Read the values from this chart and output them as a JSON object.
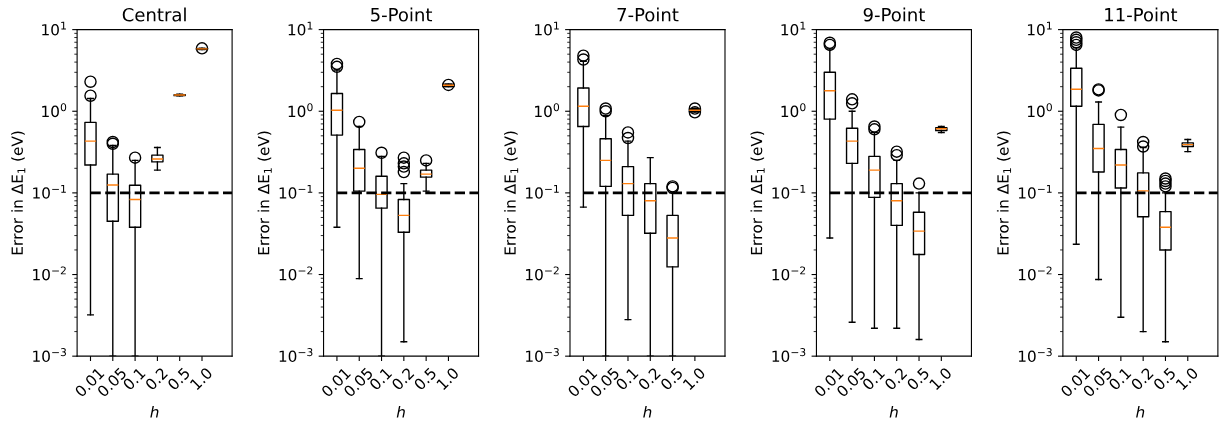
{
  "chart_data": [
    {
      "type": "box",
      "title": "Central",
      "xlabel": "h",
      "ylabel": "Error in ΔE$_{1}$ (eV)",
      "log": "y",
      "grid": false,
      "categories": [
        "0.01",
        "0.05",
        "0.1",
        "0.2",
        "0.5",
        "1.0"
      ],
      "ylim": [
        0.001,
        10
      ],
      "yticks": [
        {
          "value": 0.001,
          "label": "10$^{−3}$"
        },
        {
          "value": 0.01,
          "label": "10$^{−2}$"
        },
        {
          "value": 0.1,
          "label": "10$^{−1}$"
        },
        {
          "value": 1,
          "label": "10$^{0}$"
        },
        {
          "value": 10,
          "label": "10$^{1}$"
        }
      ],
      "ref_lines": [
        {
          "axis": "y",
          "value": 0.1,
          "color": "#000000",
          "line_style": "dashed"
        }
      ],
      "boxes": [
        {
          "low": 0.0032,
          "q1": 0.22,
          "median": 0.43,
          "q3": 0.73,
          "high": 1.43,
          "outliers": [
            1.55,
            2.3
          ]
        },
        {
          "low": 0.001,
          "q1": 0.045,
          "median": 0.125,
          "q3": 0.17,
          "high": 0.38,
          "outliers": [
            0.4,
            0.42
          ]
        },
        {
          "low": 0.001,
          "q1": 0.038,
          "median": 0.083,
          "q3": 0.124,
          "high": 0.25,
          "outliers": [
            0.27
          ]
        },
        {
          "low": 0.19,
          "q1": 0.24,
          "median": 0.26,
          "q3": 0.29,
          "high": 0.36
        },
        {
          "low": 1.55,
          "q1": 1.56,
          "median": 1.58,
          "q3": 1.6,
          "high": 1.62
        },
        {
          "low": 5.7,
          "q1": 5.75,
          "median": 5.8,
          "q3": 5.85,
          "high": 5.9,
          "outliers": [
            5.9
          ]
        }
      ]
    },
    {
      "type": "box",
      "title": "5-Point",
      "xlabel": "h",
      "ylabel": "Error in ΔE$_{1}$ (eV)",
      "log": "y",
      "grid": false,
      "categories": [
        "0.01",
        "0.05",
        "0.1",
        "0.2",
        "0.5",
        "1.0"
      ],
      "ylim": [
        0.001,
        10
      ],
      "yticks": [
        {
          "value": 0.001,
          "label": "10$^{−3}$"
        },
        {
          "value": 0.01,
          "label": "10$^{−2}$"
        },
        {
          "value": 0.1,
          "label": "10$^{−1}$"
        },
        {
          "value": 1,
          "label": "10$^{0}$"
        },
        {
          "value": 10,
          "label": "10$^{1}$"
        }
      ],
      "ref_lines": [
        {
          "axis": "y",
          "value": 0.1,
          "color": "#000000",
          "line_style": "dashed"
        }
      ],
      "boxes": [
        {
          "low": 0.038,
          "q1": 0.51,
          "median": 1.03,
          "q3": 1.65,
          "high": 3.2,
          "outliers": [
            3.5,
            3.8
          ]
        },
        {
          "low": 0.0089,
          "q1": 0.105,
          "median": 0.2,
          "q3": 0.34,
          "high": 0.65,
          "outliers": [
            0.74
          ]
        },
        {
          "low": 0.001,
          "q1": 0.065,
          "median": 0.096,
          "q3": 0.16,
          "high": 0.28,
          "outliers": [
            0.31
          ]
        },
        {
          "low": 0.0015,
          "q1": 0.033,
          "median": 0.053,
          "q3": 0.083,
          "high": 0.13,
          "outliers": [
            0.18,
            0.21,
            0.23,
            0.27
          ]
        },
        {
          "low": 0.105,
          "q1": 0.156,
          "median": 0.17,
          "q3": 0.19,
          "high": 0.23,
          "outliers": [
            0.25
          ]
        },
        {
          "low": 2.0,
          "q1": 2.0,
          "median": 2.08,
          "q3": 2.15,
          "high": 2.15,
          "outliers": [
            2.1
          ]
        }
      ]
    },
    {
      "type": "box",
      "title": "7-Point",
      "xlabel": "h",
      "ylabel": "Error in ΔE$_{1}$ (eV)",
      "log": "y",
      "grid": false,
      "categories": [
        "0.01",
        "0.05",
        "0.1",
        "0.2",
        "0.5",
        "1.0"
      ],
      "ylim": [
        0.001,
        10
      ],
      "yticks": [
        {
          "value": 0.001,
          "label": "10$^{−3}$"
        },
        {
          "value": 0.01,
          "label": "10$^{−2}$"
        },
        {
          "value": 0.1,
          "label": "10$^{−1}$"
        },
        {
          "value": 1,
          "label": "10$^{0}$"
        },
        {
          "value": 10,
          "label": "10$^{1}$"
        }
      ],
      "ref_lines": [
        {
          "axis": "y",
          "value": 0.1,
          "color": "#000000",
          "line_style": "dashed"
        }
      ],
      "boxes": [
        {
          "low": 0.067,
          "q1": 0.65,
          "median": 1.15,
          "q3": 1.93,
          "high": 4.1,
          "outliers": [
            4.3,
            4.8
          ]
        },
        {
          "low": 0.001,
          "q1": 0.12,
          "median": 0.25,
          "q3": 0.46,
          "high": 0.89,
          "outliers": [
            1.0,
            1.08
          ]
        },
        {
          "low": 0.0028,
          "q1": 0.053,
          "median": 0.13,
          "q3": 0.21,
          "high": 0.43,
          "outliers": [
            0.47,
            0.55
          ]
        },
        {
          "low": 0.001,
          "q1": 0.032,
          "median": 0.08,
          "q3": 0.13,
          "high": 0.27
        },
        {
          "low": 0.001,
          "q1": 0.0124,
          "median": 0.028,
          "q3": 0.053,
          "high": 0.1,
          "outliers": [
            0.115,
            0.12
          ]
        },
        {
          "low": 0.98,
          "q1": 1.0,
          "median": 1.03,
          "q3": 1.06,
          "high": 1.08,
          "outliers": [
            0.97,
            1.08
          ]
        }
      ]
    },
    {
      "type": "box",
      "title": "9-Point",
      "xlabel": "h",
      "ylabel": "Error in ΔE$_{1}$ (eV)",
      "log": "y",
      "grid": false,
      "categories": [
        "0.01",
        "0.05",
        "0.1",
        "0.2",
        "0.5",
        "1.0"
      ],
      "ylim": [
        0.001,
        10
      ],
      "yticks": [
        {
          "value": 0.001,
          "label": "10$^{−3}$"
        },
        {
          "value": 0.01,
          "label": "10$^{−2}$"
        },
        {
          "value": 0.1,
          "label": "10$^{−1}$"
        },
        {
          "value": 1,
          "label": "10$^{0}$"
        },
        {
          "value": 10,
          "label": "10$^{1}$"
        }
      ],
      "ref_lines": [
        {
          "axis": "y",
          "value": 0.1,
          "color": "#000000",
          "line_style": "dashed"
        }
      ],
      "boxes": [
        {
          "low": 0.028,
          "q1": 0.8,
          "median": 1.78,
          "q3": 3.0,
          "high": 5.8,
          "outliers": [
            6.5,
            6.9
          ]
        },
        {
          "low": 0.0026,
          "q1": 0.23,
          "median": 0.43,
          "q3": 0.62,
          "high": 1.0,
          "outliers": [
            1.25,
            1.4
          ]
        },
        {
          "low": 0.0022,
          "q1": 0.088,
          "median": 0.19,
          "q3": 0.28,
          "high": 0.55,
          "outliers": [
            0.6,
            0.65
          ]
        },
        {
          "low": 0.0022,
          "q1": 0.04,
          "median": 0.08,
          "q3": 0.13,
          "high": 0.25,
          "outliers": [
            0.29,
            0.32
          ]
        },
        {
          "low": 0.0016,
          "q1": 0.0176,
          "median": 0.034,
          "q3": 0.058,
          "high": 0.1,
          "outliers": [
            0.13
          ]
        },
        {
          "low": 0.55,
          "q1": 0.58,
          "median": 0.61,
          "q3": 0.63,
          "high": 0.65
        }
      ]
    },
    {
      "type": "box",
      "title": "11-Point",
      "xlabel": "h",
      "ylabel": "Error in ΔE$_{1}$ (eV)",
      "log": "y",
      "grid": false,
      "categories": [
        "0.01",
        "0.05",
        "0.1",
        "0.2",
        "0.5",
        "1.0"
      ],
      "ylim": [
        0.001,
        10
      ],
      "yticks": [
        {
          "value": 0.001,
          "label": "10$^{−3}$"
        },
        {
          "value": 0.01,
          "label": "10$^{−2}$"
        },
        {
          "value": 0.1,
          "label": "10$^{−1}$"
        },
        {
          "value": 1,
          "label": "10$^{0}$"
        },
        {
          "value": 10,
          "label": "10$^{1}$"
        }
      ],
      "ref_lines": [
        {
          "axis": "y",
          "value": 0.1,
          "color": "#000000",
          "line_style": "dashed"
        }
      ],
      "boxes": [
        {
          "low": 0.0235,
          "q1": 1.15,
          "median": 1.86,
          "q3": 3.36,
          "high": 6.0,
          "outliers": [
            6.5,
            7.0,
            7.5,
            8.0
          ]
        },
        {
          "low": 0.0087,
          "q1": 0.18,
          "median": 0.35,
          "q3": 0.69,
          "high": 1.3,
          "outliers": [
            1.8,
            1.85
          ]
        },
        {
          "low": 0.003,
          "q1": 0.115,
          "median": 0.22,
          "q3": 0.34,
          "high": 0.64,
          "outliers": [
            0.9
          ]
        },
        {
          "low": 0.002,
          "q1": 0.051,
          "median": 0.106,
          "q3": 0.176,
          "high": 0.36,
          "outliers": [
            0.37,
            0.42
          ]
        },
        {
          "low": 0.0015,
          "q1": 0.02,
          "median": 0.038,
          "q3": 0.059,
          "high": 0.1,
          "outliers": [
            0.12,
            0.13,
            0.14,
            0.15
          ]
        },
        {
          "low": 0.32,
          "q1": 0.37,
          "median": 0.39,
          "q3": 0.41,
          "high": 0.45
        }
      ]
    }
  ]
}
